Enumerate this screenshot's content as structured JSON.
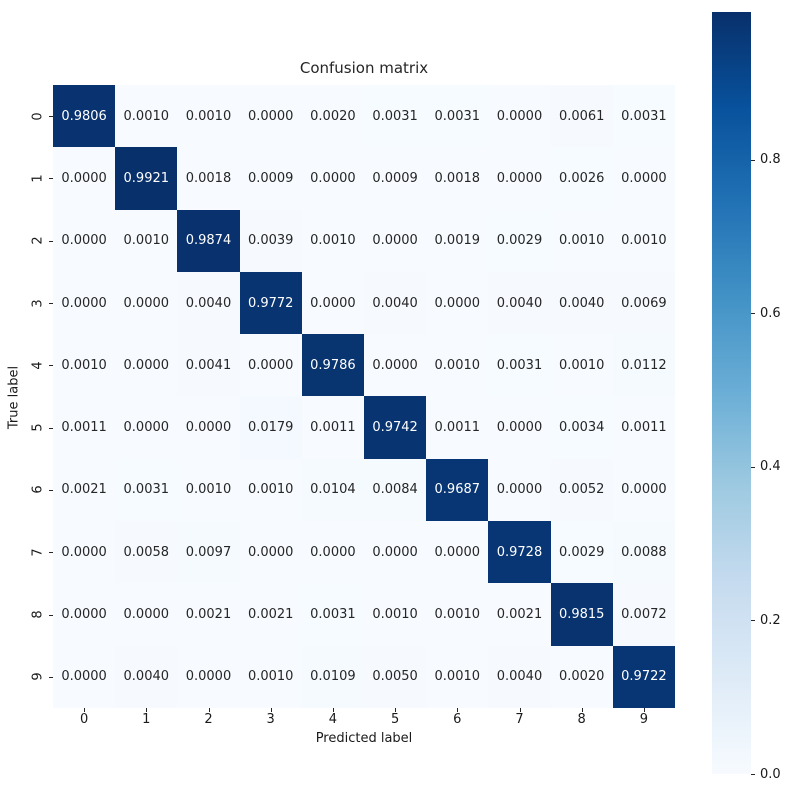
{
  "figure": {
    "title": "Confusion matrix",
    "xlabel": "Predicted label",
    "ylabel": "True label"
  },
  "chart_data": {
    "type": "heatmap",
    "title": "Confusion matrix",
    "xlabel": "Predicted label",
    "ylabel": "True label",
    "x_tick_labels": [
      "0",
      "1",
      "2",
      "3",
      "4",
      "5",
      "6",
      "7",
      "8",
      "9"
    ],
    "y_tick_labels": [
      "0",
      "1",
      "2",
      "3",
      "4",
      "5",
      "6",
      "7",
      "8",
      "9"
    ],
    "cells": [
      [
        "0.9806",
        "0.0010",
        "0.0010",
        "0.0000",
        "0.0020",
        "0.0031",
        "0.0031",
        "0.0000",
        "0.0061",
        "0.0031"
      ],
      [
        "0.0000",
        "0.9921",
        "0.0018",
        "0.0009",
        "0.0000",
        "0.0009",
        "0.0018",
        "0.0000",
        "0.0026",
        "0.0000"
      ],
      [
        "0.0000",
        "0.0010",
        "0.9874",
        "0.0039",
        "0.0010",
        "0.0000",
        "0.0019",
        "0.0029",
        "0.0010",
        "0.0010"
      ],
      [
        "0.0000",
        "0.0000",
        "0.0040",
        "0.9772",
        "0.0000",
        "0.0040",
        "0.0000",
        "0.0040",
        "0.0040",
        "0.0069"
      ],
      [
        "0.0010",
        "0.0000",
        "0.0041",
        "0.0000",
        "0.9786",
        "0.0000",
        "0.0010",
        "0.0031",
        "0.0010",
        "0.0112"
      ],
      [
        "0.0011",
        "0.0000",
        "0.0000",
        "0.0179",
        "0.0011",
        "0.9742",
        "0.0011",
        "0.0000",
        "0.0034",
        "0.0011"
      ],
      [
        "0.0021",
        "0.0031",
        "0.0010",
        "0.0010",
        "0.0104",
        "0.0084",
        "0.9687",
        "0.0000",
        "0.0052",
        "0.0000"
      ],
      [
        "0.0000",
        "0.0058",
        "0.0097",
        "0.0000",
        "0.0000",
        "0.0000",
        "0.0000",
        "0.9728",
        "0.0029",
        "0.0088"
      ],
      [
        "0.0000",
        "0.0000",
        "0.0021",
        "0.0021",
        "0.0031",
        "0.0010",
        "0.0010",
        "0.0021",
        "0.9815",
        "0.0072"
      ],
      [
        "0.0000",
        "0.0040",
        "0.0000",
        "0.0010",
        "0.0109",
        "0.0050",
        "0.0010",
        "0.0040",
        "0.0020",
        "0.9722"
      ]
    ],
    "vmin": 0.0,
    "vmax": 0.9921,
    "colormap": "Blues",
    "colorbar_tick_labels": [
      "0.0",
      "0.2",
      "0.4",
      "0.6",
      "0.8"
    ],
    "grid": false,
    "legend_position": "colorbar-right"
  },
  "colors": {
    "background": "#ffffff",
    "colormap_stops": [
      "#f7fbff",
      "#deebf7",
      "#c6dbef",
      "#9ecae1",
      "#6baed6",
      "#4292c6",
      "#2171b5",
      "#08519c",
      "#08306b"
    ],
    "annot_text_on_light": "#262626",
    "annot_text_on_dark": "#ffffff",
    "tick_text": "#1a1a1a"
  }
}
